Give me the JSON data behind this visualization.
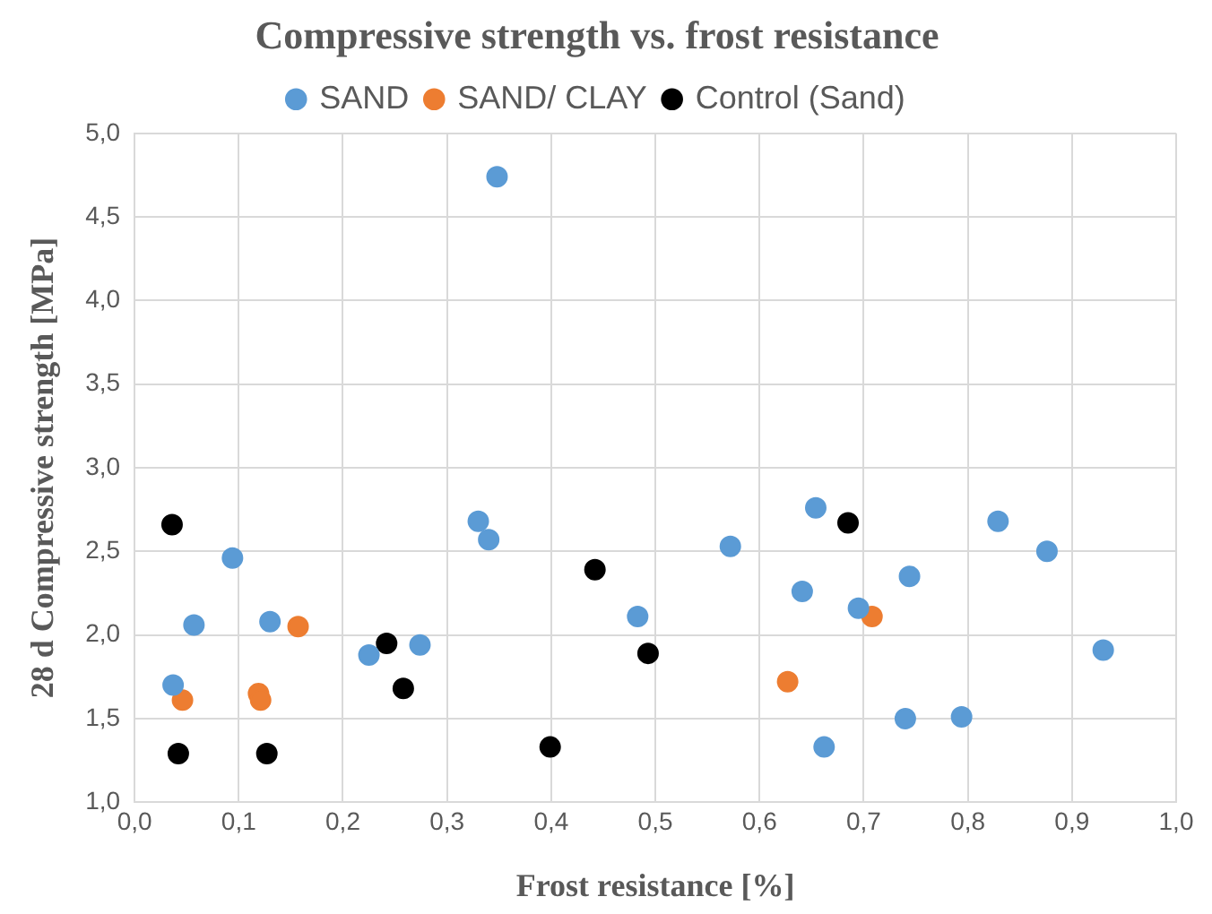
{
  "chart_data": {
    "type": "scatter",
    "title": "Compressive strength vs. frost resistance",
    "xlabel": "Frost resistance [%]",
    "ylabel": "28 d Compressive strength [MPa]",
    "xlim": [
      0,
      1
    ],
    "ylim": [
      1,
      5
    ],
    "xticks": [
      {
        "value": 0,
        "label": "0,0"
      },
      {
        "value": 0.1,
        "label": "0,1"
      },
      {
        "value": 0.2,
        "label": "0,2"
      },
      {
        "value": 0.3,
        "label": "0,3"
      },
      {
        "value": 0.4,
        "label": "0,4"
      },
      {
        "value": 0.5,
        "label": "0,5"
      },
      {
        "value": 0.6,
        "label": "0,6"
      },
      {
        "value": 0.7,
        "label": "0,7"
      },
      {
        "value": 0.8,
        "label": "0,8"
      },
      {
        "value": 0.9,
        "label": "0,9"
      },
      {
        "value": 1,
        "label": "1,0"
      }
    ],
    "yticks": [
      {
        "value": 1,
        "label": "1,0"
      },
      {
        "value": 1.5,
        "label": "1,5"
      },
      {
        "value": 2,
        "label": "2,0"
      },
      {
        "value": 2.5,
        "label": "2,5"
      },
      {
        "value": 3,
        "label": "3,0"
      },
      {
        "value": 3.5,
        "label": "3,5"
      },
      {
        "value": 4,
        "label": "4,0"
      },
      {
        "value": 4.5,
        "label": "4,5"
      },
      {
        "value": 5,
        "label": "5,0"
      }
    ],
    "grid": true,
    "legend": "top",
    "marker": "circle",
    "series": [
      {
        "name": "SAND",
        "color": "#5b9bd5",
        "x": [
          0.348,
          0.33,
          0.34,
          0.094,
          0.057,
          0.13,
          0.037,
          0.225,
          0.274,
          0.483,
          0.572,
          0.654,
          0.641,
          0.695,
          0.744,
          0.829,
          0.876,
          0.93,
          0.74,
          0.794,
          0.662
        ],
        "values": [
          4.74,
          2.68,
          2.57,
          2.46,
          2.06,
          2.08,
          1.7,
          1.88,
          1.94,
          2.11,
          2.53,
          2.76,
          2.26,
          2.16,
          2.35,
          2.68,
          2.5,
          1.91,
          1.5,
          1.51,
          1.33
        ]
      },
      {
        "name": "SAND/ CLAY",
        "color": "#ed7d31",
        "x": [
          0.046,
          0.119,
          0.121,
          0.157,
          0.708,
          0.627
        ],
        "values": [
          1.61,
          1.65,
          1.61,
          2.05,
          2.11,
          1.72
        ]
      },
      {
        "name": "Control (Sand)",
        "color": "#000000",
        "x": [
          0.036,
          0.042,
          0.127,
          0.242,
          0.258,
          0.399,
          0.442,
          0.685,
          0.493
        ],
        "values": [
          2.66,
          1.29,
          1.29,
          1.95,
          1.68,
          1.33,
          2.39,
          2.67,
          1.89
        ]
      }
    ]
  }
}
